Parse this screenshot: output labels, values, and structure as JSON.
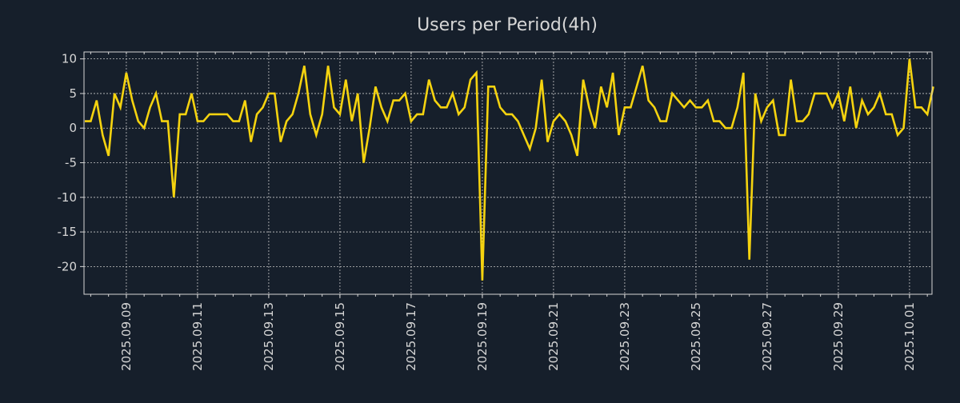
{
  "chart_data": {
    "type": "line",
    "title": "Users per Period(4h)",
    "xlabel": "",
    "ylabel": "",
    "x_start": "2025-09-07 20:00",
    "interval_hours": 4,
    "ylim": [
      -24,
      11
    ],
    "yticks": [
      10,
      5,
      0,
      -5,
      -10,
      -15,
      -20
    ],
    "ytick_labels": [
      "10",
      "5",
      "0",
      "-5",
      "-10",
      "-15",
      "-20"
    ],
    "xtick_labels": [
      "2025.09.09",
      "2025.09.11",
      "2025.09.13",
      "2025.09.15",
      "2025.09.17",
      "2025.09.19",
      "2025.09.21",
      "2025.09.23",
      "2025.09.25",
      "2025.09.27",
      "2025.09.29",
      "2025.10.01"
    ],
    "grid": true,
    "series": [
      {
        "name": "Users",
        "color": "#f5d30f",
        "values": [
          1,
          1,
          4,
          -1,
          -4,
          5,
          3,
          8,
          4,
          1,
          0,
          3,
          5,
          1,
          1,
          -10,
          2,
          2,
          5,
          1,
          1,
          2,
          2,
          2,
          2,
          1,
          1,
          4,
          -2,
          2,
          3,
          5,
          5,
          -2,
          1,
          2,
          5,
          9,
          2,
          -1,
          2,
          9,
          3,
          2,
          7,
          1,
          5,
          -5,
          0,
          6,
          3,
          1,
          4,
          4,
          5,
          1,
          2,
          2,
          7,
          4,
          3,
          3,
          5,
          2,
          3,
          7,
          8,
          -22,
          6,
          6,
          3,
          2,
          2,
          1,
          -1,
          -3,
          0,
          7,
          -2,
          1,
          2,
          1,
          -1,
          -4,
          7,
          3,
          0,
          6,
          3,
          8,
          -1,
          3,
          3,
          6,
          9,
          4,
          3,
          1,
          1,
          5,
          4,
          3,
          4,
          3,
          3,
          4,
          1,
          1,
          0,
          0,
          3,
          8,
          -19,
          5,
          1,
          3,
          4,
          -1,
          -1,
          7,
          1,
          1,
          2,
          5,
          5,
          5,
          3,
          5,
          1,
          6,
          0,
          4,
          2,
          3,
          5,
          2,
          2,
          -1,
          0,
          10,
          3,
          3,
          2,
          6
        ]
      }
    ]
  },
  "colors": {
    "background": "#161f2b",
    "line": "#f5d30f",
    "grid": "#c8c8c8"
  }
}
